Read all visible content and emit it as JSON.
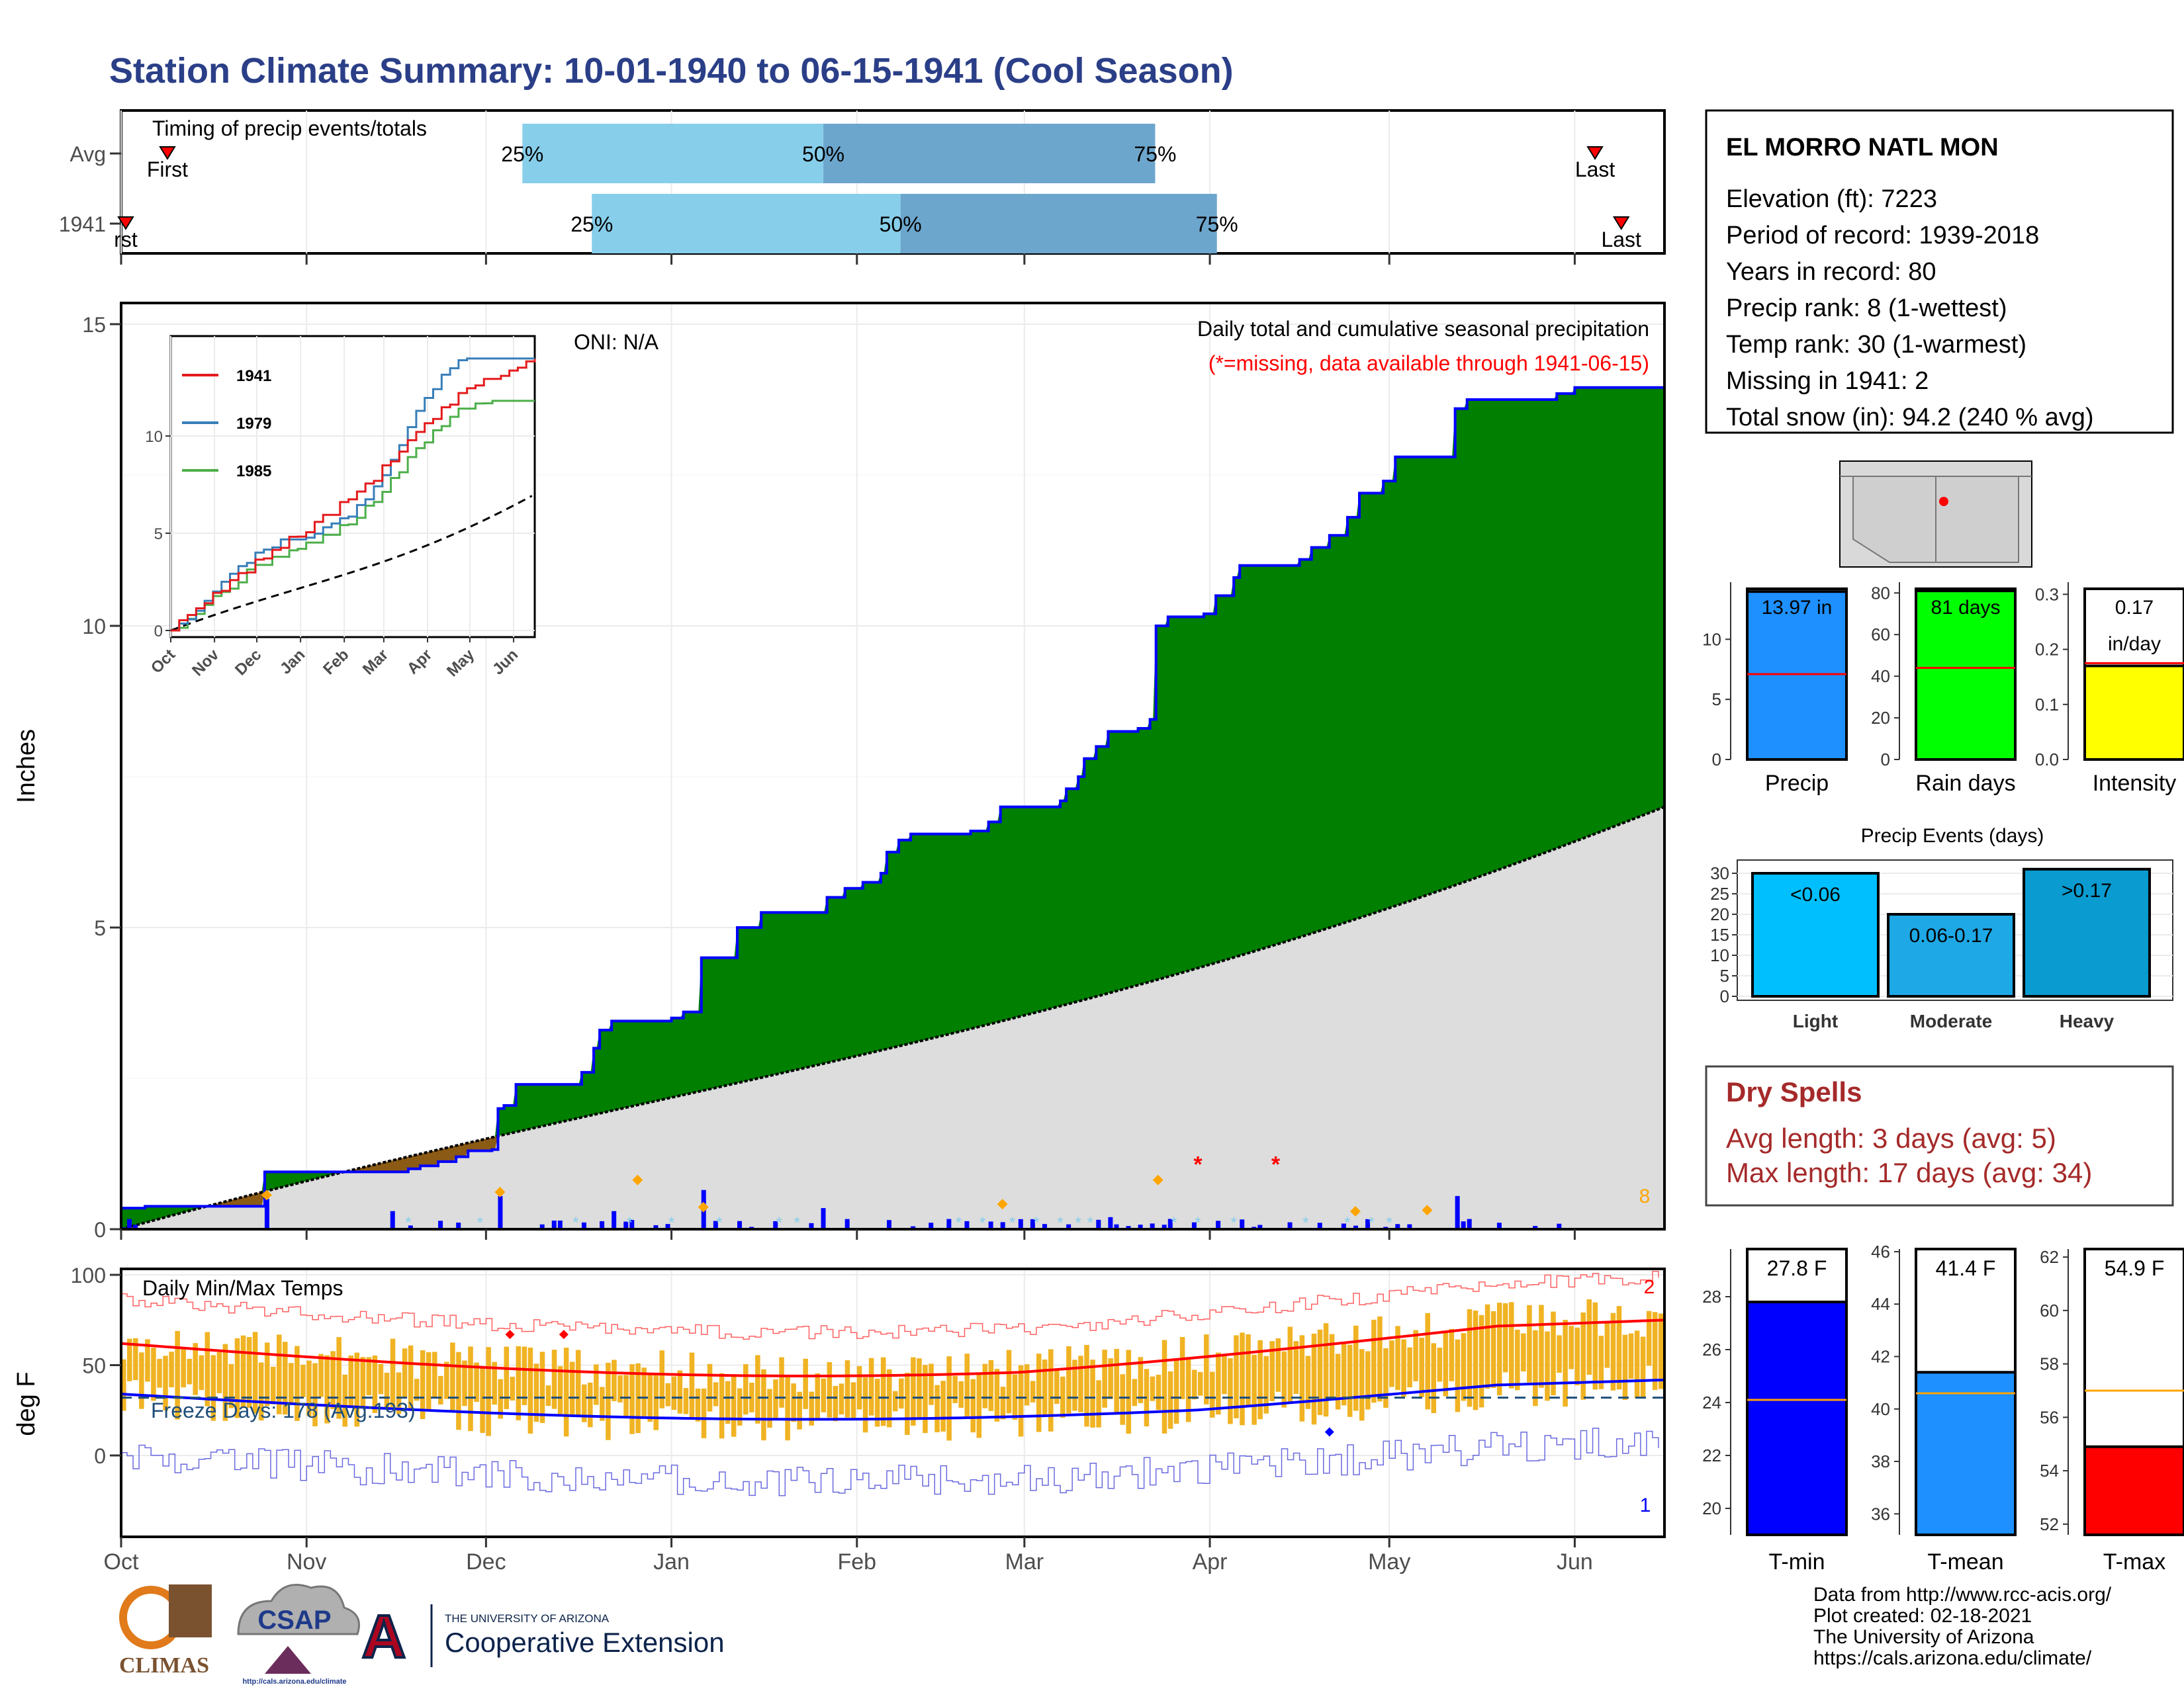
{
  "title": "Station Climate Summary: 10-01-1940 to 06-15-1941 (Cool Season)",
  "colors": {
    "title": "#2B3F88",
    "cum": "#007F00",
    "avg_fill": "#DDDDDD",
    "bar_blue": "#0000FF",
    "dry": "#A52A2A",
    "orange": "#F0B323"
  },
  "timing": {
    "title": "Timing of precip events/totals",
    "rows": [
      {
        "label": "Avg",
        "q": [
          0.26,
          0.455,
          0.67
        ],
        "first": 0.03,
        "last": 0.955,
        "first_label": "First",
        "last_label": "Last"
      },
      {
        "label": "1941",
        "q": [
          0.305,
          0.505,
          0.71
        ],
        "first": 0.003,
        "last": 0.972,
        "first_label": "rst",
        "last_label": "Last"
      }
    ],
    "pct_labels": [
      "25%",
      "50%",
      "75%"
    ]
  },
  "precip_panel": {
    "ylabel": "Inches",
    "yticks": [
      "0",
      "5",
      "10",
      "15"
    ],
    "oni": "ONI: N/A",
    "header": "Daily total and cumulative seasonal precipitation",
    "missing_note": "(*=missing, data available through 1941-06-15)",
    "count_label": "8"
  },
  "inset": {
    "yticks": [
      "0",
      "5",
      "10"
    ],
    "xticks": [
      "Oct",
      "Nov",
      "Dec",
      "Jan",
      "Feb",
      "Mar",
      "Apr",
      "May",
      "Jun"
    ],
    "legend": [
      {
        "name": "1941",
        "color": "#E41A1C"
      },
      {
        "name": "1979",
        "color": "#377EB8"
      },
      {
        "name": "1985",
        "color": "#4DAF4A"
      }
    ]
  },
  "temp_panel": {
    "ylabel": "deg F",
    "yticks": [
      "0",
      "50",
      "100"
    ],
    "title": "Daily Min/Max Temps",
    "freeze": "Freeze Days: 178 (Avg:193)",
    "record_high_count": "2",
    "record_low_count": "1"
  },
  "xticks": [
    "Oct",
    "Nov",
    "Dec",
    "Jan",
    "Feb",
    "Mar",
    "Apr",
    "May",
    "Jun"
  ],
  "station": {
    "name": "EL MORRO NATL MON",
    "lines": [
      "Elevation (ft): 7223",
      "Period of record: 1939-2018",
      "Years in record: 80",
      "Precip rank: 8 (1-wettest)",
      "Temp rank: 30 (1-warmest)",
      "Missing in 1941: 2",
      "Total snow (in): 94.2 (240 % avg)"
    ]
  },
  "mini_bars": [
    {
      "label": "Precip",
      "value_label": "13.97 in",
      "value": 13.97,
      "avg": 7.1,
      "ymax": 14.2,
      "ticks": [
        "0",
        "5",
        "10"
      ],
      "tick_vals": [
        0,
        5,
        10
      ],
      "color": "#1E90FF"
    },
    {
      "label": "Rain days",
      "value_label": "81 days",
      "value": 81,
      "avg": 44,
      "ymax": 82,
      "ticks": [
        "0",
        "20",
        "40",
        "60",
        "80"
      ],
      "tick_vals": [
        0,
        20,
        40,
        60,
        80
      ],
      "color": "#00FF00"
    },
    {
      "label": "Intensity",
      "value_label": "0.17\nin/day",
      "value": 0.17,
      "avg": 0.175,
      "ymax": 0.31,
      "ticks": [
        "0.0",
        "0.1",
        "0.2",
        "0.3"
      ],
      "tick_vals": [
        0,
        0.1,
        0.2,
        0.3
      ],
      "color": "#FFFF00"
    }
  ],
  "events": {
    "title": "Precip Events (days)",
    "yticks": [
      "0",
      "5",
      "10",
      "15",
      "20",
      "25",
      "30"
    ],
    "bars": [
      {
        "cat": "Light",
        "label": "<0.06",
        "value": 30,
        "color": "#00BFFF"
      },
      {
        "cat": "Moderate",
        "label": "0.06-0.17",
        "value": 20,
        "color": "#1EA8E6"
      },
      {
        "cat": "Heavy",
        "label": ">0.17",
        "value": 31,
        "color": "#0A9BD0"
      }
    ]
  },
  "dry_spells": {
    "title": "Dry Spells",
    "avg_line": "Avg length: 3 days (avg: 5)",
    "max_line": "Max length: 17 days (avg: 34)"
  },
  "temp_bars": [
    {
      "label": "T-min",
      "value_label": "27.8 F",
      "value": 27.8,
      "avg": 24.1,
      "ymin": 19,
      "ymax": 29.8,
      "ticks": [
        "20",
        "22",
        "24",
        "26",
        "28"
      ],
      "tick_vals": [
        20,
        22,
        24,
        26,
        28
      ],
      "color": "#0000FF"
    },
    {
      "label": "T-mean",
      "value_label": "41.4 F",
      "value": 41.4,
      "avg": 40.6,
      "ymin": 35.2,
      "ymax": 46.1,
      "ticks": [
        "36",
        "38",
        "40",
        "42",
        "44",
        "46"
      ],
      "tick_vals": [
        36,
        38,
        40,
        42,
        44,
        46
      ],
      "color": "#1E90FF"
    },
    {
      "label": "T-max",
      "value_label": "54.9 F",
      "value": 54.9,
      "avg": 57.0,
      "ymin": 51.6,
      "ymax": 62.3,
      "ticks": [
        "52",
        "54",
        "56",
        "58",
        "60",
        "62"
      ],
      "tick_vals": [
        52,
        54,
        56,
        58,
        60,
        62
      ],
      "color": "#FF0000"
    }
  ],
  "footer": {
    "lines": [
      "Data from http://www.rcc-acis.org/",
      "Plot created: 02-18-2021",
      "The University of Arizona",
      "https://cals.arizona.edu/climate/"
    ],
    "logos": {
      "climas": "CLIMAS",
      "csap": "CSAP",
      "csap_url": "http://cals.arizona.edu/climate",
      "ua_small": "THE UNIVERSITY OF ARIZONA",
      "ua_big": "Cooperative Extension"
    }
  }
}
